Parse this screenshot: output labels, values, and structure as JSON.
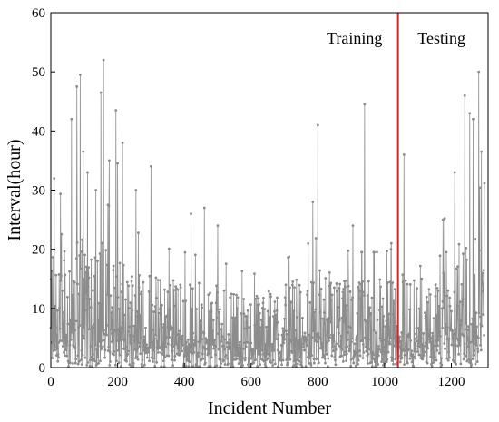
{
  "chart_data": {
    "type": "line",
    "title": "",
    "xlabel": "Incident Number",
    "ylabel": "Interval(hour)",
    "xlim": [
      0,
      1310
    ],
    "ylim": [
      0,
      60
    ],
    "x_ticks": [
      "0",
      "200",
      "400",
      "600",
      "800",
      "1000",
      "1200"
    ],
    "y_ticks": [
      "0",
      "10",
      "20",
      "30",
      "40",
      "50",
      "60"
    ],
    "grid": false,
    "line_color": "#8c8c8c",
    "marker_color": "#8c8c8c",
    "split": {
      "x": 1040,
      "color": "#e02020"
    },
    "regions": {
      "training_label": "Training",
      "testing_label": "Testing"
    },
    "n_points": 1300,
    "peaks": [
      {
        "x": 10,
        "y": 32
      },
      {
        "x": 62,
        "y": 42
      },
      {
        "x": 78,
        "y": 47.5
      },
      {
        "x": 88,
        "y": 49.5
      },
      {
        "x": 97,
        "y": 36.5
      },
      {
        "x": 110,
        "y": 33
      },
      {
        "x": 135,
        "y": 30
      },
      {
        "x": 150,
        "y": 46.5
      },
      {
        "x": 158,
        "y": 52
      },
      {
        "x": 175,
        "y": 35
      },
      {
        "x": 195,
        "y": 43.5
      },
      {
        "x": 200,
        "y": 34.5
      },
      {
        "x": 215,
        "y": 38
      },
      {
        "x": 255,
        "y": 30
      },
      {
        "x": 300,
        "y": 34
      },
      {
        "x": 420,
        "y": 26
      },
      {
        "x": 460,
        "y": 27
      },
      {
        "x": 500,
        "y": 24
      },
      {
        "x": 785,
        "y": 28
      },
      {
        "x": 800,
        "y": 41
      },
      {
        "x": 905,
        "y": 24
      },
      {
        "x": 940,
        "y": 44.5
      },
      {
        "x": 1020,
        "y": 21
      },
      {
        "x": 1058,
        "y": 36
      },
      {
        "x": 1175,
        "y": 25
      },
      {
        "x": 1210,
        "y": 33
      },
      {
        "x": 1240,
        "y": 46
      },
      {
        "x": 1255,
        "y": 43
      },
      {
        "x": 1265,
        "y": 42
      },
      {
        "x": 1282,
        "y": 50
      },
      {
        "x": 1290,
        "y": 36.5
      }
    ],
    "envelope": [
      {
        "x": 0,
        "y": 22
      },
      {
        "x": 100,
        "y": 24
      },
      {
        "x": 200,
        "y": 20
      },
      {
        "x": 300,
        "y": 16
      },
      {
        "x": 400,
        "y": 15
      },
      {
        "x": 500,
        "y": 14
      },
      {
        "x": 600,
        "y": 12
      },
      {
        "x": 700,
        "y": 14
      },
      {
        "x": 800,
        "y": 17
      },
      {
        "x": 900,
        "y": 15
      },
      {
        "x": 1000,
        "y": 15
      },
      {
        "x": 1100,
        "y": 17
      },
      {
        "x": 1200,
        "y": 20
      },
      {
        "x": 1300,
        "y": 24
      }
    ]
  }
}
